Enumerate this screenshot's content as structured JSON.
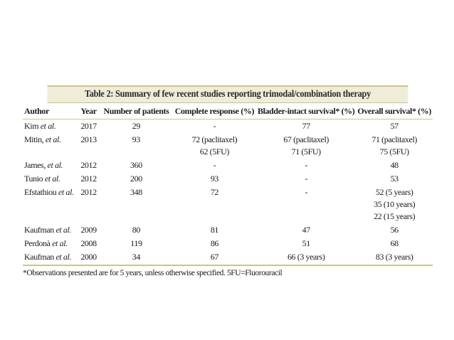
{
  "table": {
    "caption": "Table 2: Summary of few recent studies reporting trimodal/combination therapy",
    "headers": {
      "author": "Author",
      "year": "Year",
      "patients": "Number of patients",
      "complete_response": "Complete response (%)",
      "bladder_intact": "Bladder-intact survival* (%)",
      "overall": "Overall survival* (%)"
    },
    "rows": [
      {
        "author_name": "Kim",
        "author_suffix": " et al.",
        "year": "2017",
        "patients": "29",
        "cr": [
          "-"
        ],
        "bi": [
          "77"
        ],
        "os": [
          "57"
        ]
      },
      {
        "author_name": "Mitin,",
        "author_suffix": " et al.",
        "year": "2013",
        "patients": "93",
        "cr": [
          "72 (paclitaxel)",
          "62 (5FU)"
        ],
        "bi": [
          "67 (paclitaxel)",
          "71 (5FU)"
        ],
        "os": [
          "71 (paclitaxel)",
          "75 (5FU)"
        ]
      },
      {
        "author_name": "James,",
        "author_suffix": " et al.",
        "year": "2012",
        "patients": "360",
        "cr": [
          "-"
        ],
        "bi": [
          "-"
        ],
        "os": [
          "48"
        ]
      },
      {
        "author_name": "Tunio",
        "author_suffix": " et al.",
        "year": "2012",
        "patients": "200",
        "cr": [
          "93"
        ],
        "bi": [
          "-"
        ],
        "os": [
          "53"
        ]
      },
      {
        "author_name": "Efstathiou",
        "author_suffix": " et al.",
        "year": "2012",
        "patients": "348",
        "cr": [
          "72"
        ],
        "bi": [
          "-"
        ],
        "os": [
          "52 (5 years)",
          "35 (10 years)",
          "22 (15 years)"
        ]
      },
      {
        "author_name": "Kaufman",
        "author_suffix": " et al.",
        "year": "2009",
        "patients": "80",
        "cr": [
          "81"
        ],
        "bi": [
          "47"
        ],
        "os": [
          "56"
        ]
      },
      {
        "author_name": "Perdonà",
        "author_suffix": " et al.",
        "year": "2008",
        "patients": "119",
        "cr": [
          "86"
        ],
        "bi": [
          "51"
        ],
        "os": [
          "68"
        ]
      },
      {
        "author_name": "Kaufman",
        "author_suffix": " et al.",
        "year": "2000",
        "patients": "34",
        "cr": [
          "67"
        ],
        "bi": [
          "66 (3 years)"
        ],
        "os": [
          "83 (3 years)"
        ]
      }
    ],
    "footnote": "*Observations presented are for 5 years, unless otherwise specified. 5FU=Fluorouracil"
  }
}
